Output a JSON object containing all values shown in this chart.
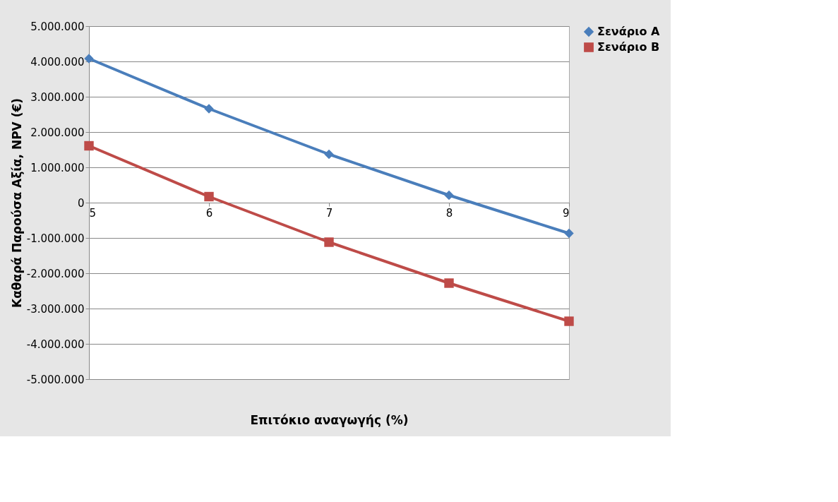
{
  "chart_data": {
    "type": "line",
    "xlabel": "Επιτόκιο αναγωγής (%)",
    "ylabel": "Καθαρά Παρούσα Αξία, NPV (€)",
    "x": [
      5,
      6,
      7,
      8,
      9
    ],
    "series": [
      {
        "name": "Σενάριο Α",
        "color": "#4a7ebb",
        "marker": "diamond",
        "values": [
          4080000,
          2660000,
          1370000,
          210000,
          -870000
        ]
      },
      {
        "name": "Σενάριο Β",
        "color": "#be4b48",
        "marker": "square",
        "values": [
          1610000,
          170000,
          -1120000,
          -2280000,
          -3360000
        ]
      }
    ],
    "xlim": [
      5,
      9
    ],
    "xticks": [
      5,
      6,
      7,
      8,
      9
    ],
    "ylim": [
      -5000000,
      5000000
    ],
    "yticks": [
      {
        "value": -5000000,
        "label": "-5.000.000"
      },
      {
        "value": -4000000,
        "label": "-4.000.000"
      },
      {
        "value": -3000000,
        "label": "-3.000.000"
      },
      {
        "value": -2000000,
        "label": "-2.000.000"
      },
      {
        "value": -1000000,
        "label": "-1.000.000"
      },
      {
        "value": 0,
        "label": "0"
      },
      {
        "value": 1000000,
        "label": "1.000.000"
      },
      {
        "value": 2000000,
        "label": "2.000.000"
      },
      {
        "value": 3000000,
        "label": "3.000.000"
      },
      {
        "value": 4000000,
        "label": "4.000.000"
      },
      {
        "value": 5000000,
        "label": "5.000.000"
      }
    ],
    "grid": "y",
    "legend": "right",
    "line_style": "solid"
  }
}
